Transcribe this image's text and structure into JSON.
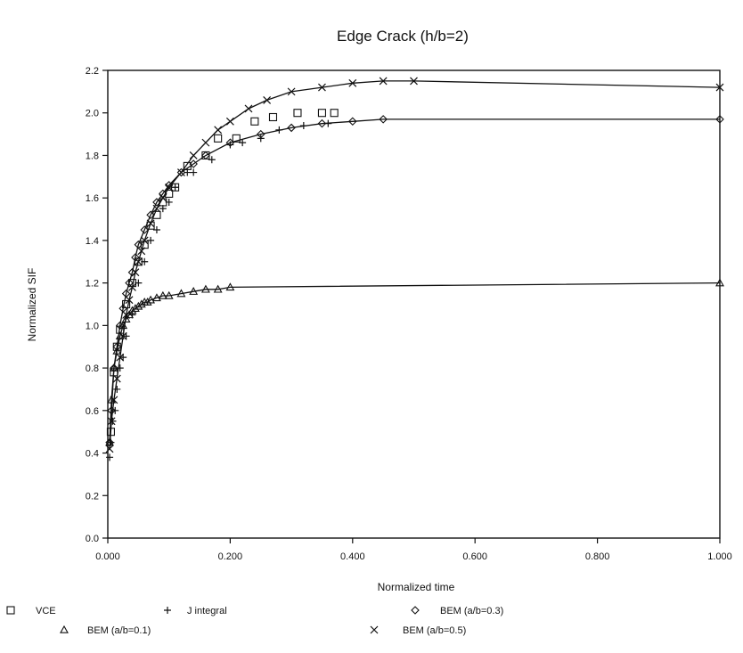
{
  "chart_data": {
    "type": "scatter",
    "title": "Edge Crack (h/b=2)",
    "xlabel": "Normalized time",
    "ylabel": "Normalized SIF",
    "xlim": [
      0,
      1.0
    ],
    "ylim": [
      0,
      2.2
    ],
    "x_ticks": [
      "0.000",
      "0.200",
      "0.400",
      "0.600",
      "0.800",
      "1.000"
    ],
    "y_ticks": [
      "0.0",
      "0.2",
      "0.4",
      "0.6",
      "0.8",
      "1.0",
      "1.2",
      "1.4",
      "1.6",
      "1.8",
      "2.0",
      "2.2"
    ],
    "grid": false,
    "legend_position": "bottom",
    "series": [
      {
        "name": "VCE",
        "marker": "square",
        "points": [
          [
            0.005,
            0.5
          ],
          [
            0.01,
            0.78
          ],
          [
            0.015,
            0.9
          ],
          [
            0.02,
            0.98
          ],
          [
            0.03,
            1.1
          ],
          [
            0.04,
            1.2
          ],
          [
            0.05,
            1.3
          ],
          [
            0.06,
            1.38
          ],
          [
            0.07,
            1.47
          ],
          [
            0.08,
            1.52
          ],
          [
            0.09,
            1.58
          ],
          [
            0.1,
            1.62
          ],
          [
            0.11,
            1.65
          ],
          [
            0.13,
            1.75
          ],
          [
            0.16,
            1.8
          ],
          [
            0.18,
            1.88
          ],
          [
            0.21,
            1.88
          ],
          [
            0.24,
            1.96
          ],
          [
            0.27,
            1.98
          ],
          [
            0.31,
            2.0
          ],
          [
            0.35,
            2.0
          ],
          [
            0.37,
            2.0
          ]
        ]
      },
      {
        "name": "J integral",
        "marker": "plus",
        "points": [
          [
            0.003,
            0.38
          ],
          [
            0.005,
            0.45
          ],
          [
            0.008,
            0.55
          ],
          [
            0.012,
            0.6
          ],
          [
            0.015,
            0.7
          ],
          [
            0.02,
            0.8
          ],
          [
            0.025,
            0.85
          ],
          [
            0.03,
            0.95
          ],
          [
            0.04,
            1.05
          ],
          [
            0.05,
            1.2
          ],
          [
            0.06,
            1.3
          ],
          [
            0.07,
            1.4
          ],
          [
            0.08,
            1.45
          ],
          [
            0.09,
            1.55
          ],
          [
            0.1,
            1.58
          ],
          [
            0.11,
            1.65
          ],
          [
            0.13,
            1.72
          ],
          [
            0.14,
            1.72
          ],
          [
            0.17,
            1.78
          ],
          [
            0.2,
            1.85
          ],
          [
            0.22,
            1.86
          ],
          [
            0.25,
            1.88
          ],
          [
            0.28,
            1.92
          ],
          [
            0.32,
            1.94
          ],
          [
            0.36,
            1.95
          ]
        ]
      },
      {
        "name": "BEM (a/b=0.3)",
        "marker": "diamond",
        "points": [
          [
            0.003,
            0.45
          ],
          [
            0.006,
            0.6
          ],
          [
            0.01,
            0.8
          ],
          [
            0.015,
            0.9
          ],
          [
            0.02,
            1.0
          ],
          [
            0.025,
            1.08
          ],
          [
            0.03,
            1.15
          ],
          [
            0.035,
            1.2
          ],
          [
            0.04,
            1.25
          ],
          [
            0.045,
            1.32
          ],
          [
            0.05,
            1.38
          ],
          [
            0.06,
            1.45
          ],
          [
            0.07,
            1.52
          ],
          [
            0.08,
            1.58
          ],
          [
            0.09,
            1.62
          ],
          [
            0.1,
            1.66
          ],
          [
            0.12,
            1.72
          ],
          [
            0.14,
            1.76
          ],
          [
            0.16,
            1.8
          ],
          [
            0.2,
            1.86
          ],
          [
            0.25,
            1.9
          ],
          [
            0.3,
            1.93
          ],
          [
            0.35,
            1.95
          ],
          [
            0.4,
            1.96
          ],
          [
            0.45,
            1.97
          ],
          [
            1.0,
            1.97
          ]
        ]
      },
      {
        "name": "BEM (a/b=0.1)",
        "marker": "triangle",
        "points": [
          [
            0.003,
            0.45
          ],
          [
            0.006,
            0.65
          ],
          [
            0.01,
            0.8
          ],
          [
            0.015,
            0.88
          ],
          [
            0.02,
            0.95
          ],
          [
            0.025,
            1.0
          ],
          [
            0.03,
            1.03
          ],
          [
            0.035,
            1.05
          ],
          [
            0.04,
            1.07
          ],
          [
            0.045,
            1.08
          ],
          [
            0.05,
            1.09
          ],
          [
            0.055,
            1.1
          ],
          [
            0.06,
            1.11
          ],
          [
            0.065,
            1.11
          ],
          [
            0.07,
            1.12
          ],
          [
            0.08,
            1.13
          ],
          [
            0.09,
            1.14
          ],
          [
            0.1,
            1.14
          ],
          [
            0.12,
            1.15
          ],
          [
            0.14,
            1.16
          ],
          [
            0.16,
            1.17
          ],
          [
            0.18,
            1.17
          ],
          [
            0.2,
            1.18
          ],
          [
            1.0,
            1.2
          ]
        ]
      },
      {
        "name": "BEM (a/b=0.5)",
        "marker": "x",
        "points": [
          [
            0.003,
            0.42
          ],
          [
            0.006,
            0.55
          ],
          [
            0.01,
            0.65
          ],
          [
            0.015,
            0.75
          ],
          [
            0.02,
            0.85
          ],
          [
            0.025,
            0.95
          ],
          [
            0.03,
            1.05
          ],
          [
            0.035,
            1.12
          ],
          [
            0.04,
            1.18
          ],
          [
            0.045,
            1.25
          ],
          [
            0.05,
            1.3
          ],
          [
            0.055,
            1.35
          ],
          [
            0.06,
            1.4
          ],
          [
            0.07,
            1.48
          ],
          [
            0.08,
            1.55
          ],
          [
            0.09,
            1.6
          ],
          [
            0.1,
            1.65
          ],
          [
            0.12,
            1.72
          ],
          [
            0.14,
            1.8
          ],
          [
            0.16,
            1.86
          ],
          [
            0.18,
            1.92
          ],
          [
            0.2,
            1.96
          ],
          [
            0.23,
            2.02
          ],
          [
            0.26,
            2.06
          ],
          [
            0.3,
            2.1
          ],
          [
            0.35,
            2.12
          ],
          [
            0.4,
            2.14
          ],
          [
            0.45,
            2.15
          ],
          [
            0.5,
            2.15
          ],
          [
            1.0,
            2.12
          ]
        ]
      }
    ]
  }
}
